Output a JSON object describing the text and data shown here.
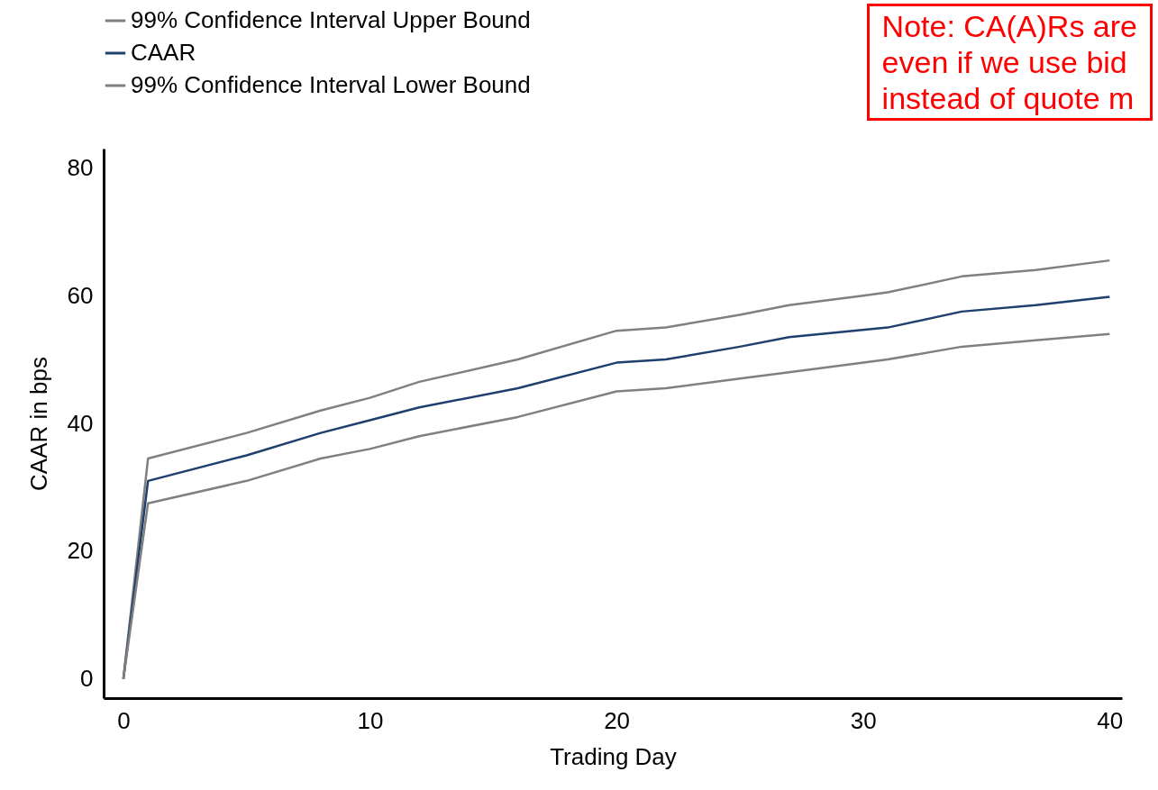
{
  "chart_data": {
    "type": "line",
    "xlabel": "Trading Day",
    "ylabel": "CAAR in bps",
    "annotations": [
      "Note: CA(A)Rs are\neven if we use bid\ninstead of quote m"
    ],
    "xlim": [
      -0.8,
      40.5
    ],
    "xticks": [
      0,
      10,
      20,
      30,
      40
    ],
    "ylim": [
      -3,
      83
    ],
    "yticks": [
      0,
      20,
      40,
      60,
      80
    ],
    "grid": false,
    "legend": "top left",
    "line_style": "solid",
    "marker": "none",
    "series": [
      {
        "name": "99% Confidence Interval Upper Bound",
        "color": "#808080",
        "x": [
          0,
          1,
          5,
          8,
          10,
          12,
          16,
          20,
          22,
          25,
          27,
          30,
          31,
          34,
          37,
          40
        ],
        "values": [
          0,
          34.5,
          38.5,
          42,
          44,
          46.5,
          50,
          54.5,
          55,
          57,
          58.5,
          60,
          60.5,
          63,
          64,
          65.5
        ]
      },
      {
        "name": "CAAR",
        "color": "#1f3f6e",
        "x": [
          0,
          1,
          5,
          8,
          10,
          12,
          16,
          20,
          22,
          25,
          27,
          31,
          34,
          37,
          40
        ],
        "values": [
          0,
          31,
          35,
          38.5,
          40.5,
          42.5,
          45.5,
          49.5,
          50,
          52,
          53.5,
          55,
          57.5,
          58.5,
          59.8
        ]
      },
      {
        "name": "99% Confidence Interval Lower Bound",
        "color": "#808080",
        "x": [
          0,
          1,
          5,
          8,
          10,
          12,
          16,
          20,
          22,
          25,
          27,
          31,
          34,
          37,
          40
        ],
        "values": [
          0,
          27.5,
          31,
          34.5,
          36,
          38,
          41,
          45,
          45.5,
          47,
          48,
          50,
          52,
          53,
          54
        ]
      }
    ]
  }
}
